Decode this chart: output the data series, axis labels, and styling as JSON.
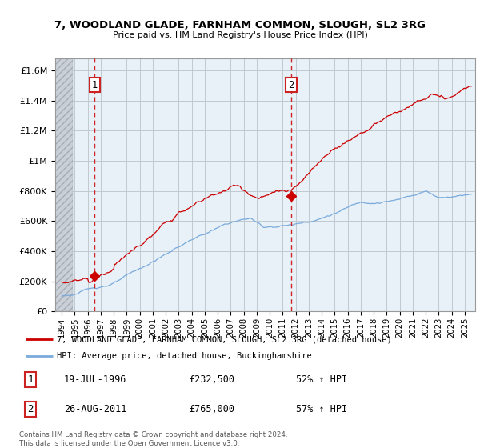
{
  "title1": "7, WOODLAND GLADE, FARNHAM COMMON, SLOUGH, SL2 3RG",
  "title2": "Price paid vs. HM Land Registry's House Price Index (HPI)",
  "ylabel_ticks": [
    "£0",
    "£200K",
    "£400K",
    "£600K",
    "£800K",
    "£1M",
    "£1.2M",
    "£1.4M",
    "£1.6M"
  ],
  "ylabel_vals": [
    0,
    200000,
    400000,
    600000,
    800000,
    1000000,
    1200000,
    1400000,
    1600000
  ],
  "ylim": [
    0,
    1680000
  ],
  "xlim_start": 1993.5,
  "xlim_end": 2025.8,
  "purchase1_x": 1996.54,
  "purchase1_y": 232500,
  "purchase2_x": 2011.65,
  "purchase2_y": 765000,
  "red_line_color": "#cc0000",
  "blue_line_color": "#7aabdc",
  "bg_chart_color": "#e8f0f8",
  "hatch_color": "#c8d0d8",
  "grid_color": "#c0c8d0",
  "legend_line1": "7, WOODLAND GLADE, FARNHAM COMMON, SLOUGH, SL2 3RG (detached house)",
  "legend_line2": "HPI: Average price, detached house, Buckinghamshire",
  "note1_label": "1",
  "note1_date": "19-JUL-1996",
  "note1_price": "£232,500",
  "note1_hpi": "52% ↑ HPI",
  "note2_label": "2",
  "note2_date": "26-AUG-2011",
  "note2_price": "£765,000",
  "note2_hpi": "57% ↑ HPI",
  "footer": "Contains HM Land Registry data © Crown copyright and database right 2024.\nThis data is licensed under the Open Government Licence v3.0.",
  "xtick_years": [
    1994,
    1995,
    1996,
    1997,
    1998,
    1999,
    2000,
    2001,
    2002,
    2003,
    2004,
    2005,
    2006,
    2007,
    2008,
    2009,
    2010,
    2011,
    2012,
    2013,
    2014,
    2015,
    2016,
    2017,
    2018,
    2019,
    2020,
    2021,
    2022,
    2023,
    2024,
    2025
  ]
}
